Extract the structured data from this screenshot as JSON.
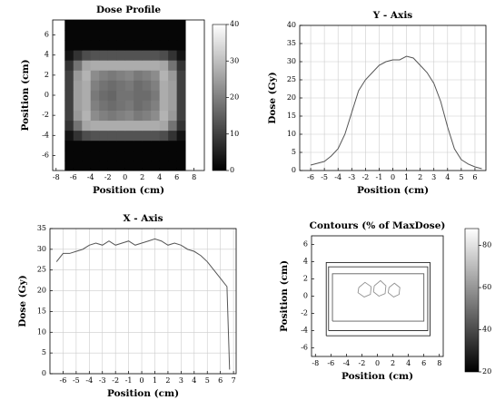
{
  "chart_data": [
    {
      "type": "heatmap",
      "title": "Dose Profile",
      "xlabel": "Position (cm)",
      "ylabel": "Position (cm)",
      "xlim": [
        -8.4,
        9.2
      ],
      "ylim": [
        -7.5,
        7.5
      ],
      "xticks": [
        -8,
        -6,
        -4,
        -2,
        0,
        2,
        4,
        6,
        8
      ],
      "yticks": [
        -6,
        -4,
        -2,
        0,
        2,
        4,
        6
      ],
      "x": [
        -6.5,
        -5.5,
        -4.5,
        -3.5,
        -2.5,
        -1.5,
        -0.5,
        0.5,
        1.5,
        2.5,
        3.5,
        4.5,
        5.5,
        6.5
      ],
      "y": [
        -7,
        -6,
        -5,
        -4,
        -3,
        -2,
        -1,
        0,
        1,
        2,
        3,
        4,
        5,
        6,
        7
      ],
      "z": [
        [
          1,
          1,
          1,
          1,
          1,
          1,
          1,
          1,
          1,
          1,
          1,
          1,
          1,
          1
        ],
        [
          1,
          1,
          1,
          1,
          1,
          1,
          1,
          1,
          1,
          1,
          1,
          1,
          1,
          1
        ],
        [
          1,
          1,
          1,
          1,
          1,
          1,
          1,
          1,
          1,
          1,
          1,
          1,
          1,
          1
        ],
        [
          3,
          8,
          12,
          13,
          13,
          13,
          13,
          13,
          13,
          13,
          13,
          12,
          8,
          3
        ],
        [
          8,
          18,
          26,
          27,
          27,
          27,
          27,
          27,
          27,
          27,
          27,
          26,
          18,
          8
        ],
        [
          10,
          24,
          28,
          22,
          20,
          19,
          20,
          21,
          19,
          20,
          22,
          28,
          24,
          10
        ],
        [
          10,
          25,
          27,
          20,
          18,
          17,
          18,
          19,
          17,
          18,
          20,
          27,
          25,
          10
        ],
        [
          10,
          25,
          27,
          19,
          17,
          16,
          18,
          18,
          17,
          17,
          19,
          27,
          25,
          10
        ],
        [
          10,
          25,
          27,
          20,
          18,
          17,
          18,
          19,
          17,
          18,
          20,
          27,
          25,
          10
        ],
        [
          10,
          24,
          28,
          22,
          20,
          19,
          20,
          21,
          19,
          20,
          22,
          28,
          24,
          10
        ],
        [
          8,
          18,
          26,
          27,
          27,
          27,
          27,
          27,
          27,
          27,
          27,
          26,
          18,
          8
        ],
        [
          3,
          8,
          12,
          13,
          13,
          13,
          13,
          13,
          13,
          13,
          13,
          12,
          8,
          3
        ],
        [
          1,
          1,
          1,
          1,
          1,
          1,
          1,
          1,
          1,
          1,
          1,
          1,
          1,
          1
        ],
        [
          1,
          1,
          1,
          1,
          1,
          1,
          1,
          1,
          1,
          1,
          1,
          1,
          1,
          1
        ],
        [
          1,
          1,
          1,
          1,
          1,
          1,
          1,
          1,
          1,
          1,
          1,
          1,
          1,
          1
        ]
      ],
      "colorbar": {
        "lim": [
          0,
          40
        ],
        "ticks": [
          0,
          10,
          20,
          30,
          40
        ]
      }
    },
    {
      "type": "line",
      "title": "Y - Axis",
      "xlabel": "Position (cm)",
      "ylabel": "Dose (Gy)",
      "xlim": [
        -6.8,
        6.8
      ],
      "ylim": [
        0,
        40
      ],
      "xticks": [
        -6,
        -5,
        -4,
        -3,
        -2,
        -1,
        0,
        1,
        2,
        3,
        4,
        5,
        6
      ],
      "yticks": [
        0,
        5,
        10,
        15,
        20,
        25,
        30,
        35,
        40
      ],
      "grid": true,
      "color": "#555555",
      "x": [
        -6,
        -5.5,
        -5,
        -4.5,
        -4,
        -3.5,
        -3,
        -2.5,
        -2,
        -1.5,
        -1,
        -0.5,
        0,
        0.5,
        1,
        1.5,
        2,
        2.5,
        3,
        3.5,
        4,
        4.5,
        5,
        5.5,
        6,
        6.5
      ],
      "values": [
        1.5,
        2,
        2.5,
        4,
        6,
        10,
        16,
        22,
        25,
        27,
        29,
        30,
        30.5,
        30.5,
        31.5,
        31,
        29,
        27,
        24,
        19,
        12,
        6,
        3,
        1.8,
        1,
        0.5
      ]
    },
    {
      "type": "line",
      "title": "X - Axis",
      "xlabel": "Position (cm)",
      "ylabel": "Dose (Gy)",
      "xlim": [
        -7,
        7.2
      ],
      "ylim": [
        0,
        35
      ],
      "xticks": [
        -6,
        -5,
        -4,
        -3,
        -2,
        -1,
        0,
        1,
        2,
        3,
        4,
        5,
        6,
        7
      ],
      "yticks": [
        0,
        5,
        10,
        15,
        20,
        25,
        30,
        35
      ],
      "grid": true,
      "color": "#555555",
      "x": [
        -6.5,
        -6,
        -5.5,
        -5,
        -4.5,
        -4,
        -3.5,
        -3,
        -2.5,
        -2,
        -1.5,
        -1,
        -0.5,
        0,
        0.5,
        1,
        1.5,
        2,
        2.5,
        3,
        3.5,
        4,
        4.5,
        5,
        5.5,
        6,
        6.5,
        6.7
      ],
      "values": [
        27,
        29,
        29,
        29.5,
        30,
        31,
        31.5,
        31,
        32,
        31,
        31.5,
        32,
        31,
        31.5,
        32,
        32.5,
        32,
        31,
        31.5,
        31,
        30,
        29.5,
        28.5,
        27,
        25,
        23,
        21,
        1
      ]
    },
    {
      "type": "contour",
      "title": "Contours (% of MaxDose)",
      "xlabel": "Position (cm)",
      "ylabel": "Position (cm)",
      "xlim": [
        -8.5,
        8.5
      ],
      "ylim": [
        -7,
        7
      ],
      "xticks": [
        -8,
        -6,
        -4,
        -2,
        0,
        2,
        4,
        6,
        8
      ],
      "yticks": [
        -6,
        -4,
        -2,
        0,
        2,
        4,
        6
      ],
      "contours": [
        {
          "level": 20,
          "x": [
            -6.6,
            6.8,
            6.8,
            -6.6,
            -6.6
          ],
          "y": [
            -4.6,
            -4.6,
            3.9,
            3.9,
            -4.6
          ]
        },
        {
          "level": 30,
          "x": [
            -6.3,
            6.5,
            6.5,
            -6.3,
            -6.3
          ],
          "y": [
            -4,
            -4,
            3.4,
            3.4,
            -4
          ]
        },
        {
          "level": 50,
          "x": [
            -5.8,
            6,
            6,
            -5.8,
            -5.8
          ],
          "y": [
            -2.9,
            -2.9,
            2.6,
            2.6,
            -2.9
          ]
        },
        {
          "level": 80,
          "x": [
            -2.4,
            -1.6,
            -0.8,
            -0.9,
            -1.7,
            -2.5,
            -2.4
          ],
          "y": [
            1,
            1.6,
            1.1,
            0.2,
            -0.1,
            0.4,
            1
          ]
        },
        {
          "level": 80,
          "x": [
            -0.4,
            0.4,
            1.1,
            1,
            0.2,
            -0.5,
            -0.4
          ],
          "y": [
            1.2,
            1.8,
            1.2,
            0.3,
            0,
            0.5,
            1.2
          ]
        },
        {
          "level": 80,
          "x": [
            1.5,
            2.2,
            2.9,
            2.8,
            2.1,
            1.4,
            1.5
          ],
          "y": [
            1,
            1.5,
            1,
            0.2,
            -0.1,
            0.4,
            1
          ]
        }
      ],
      "colorbar": {
        "lim": [
          20,
          88
        ],
        "ticks": [
          20,
          40,
          60,
          80
        ]
      }
    }
  ]
}
